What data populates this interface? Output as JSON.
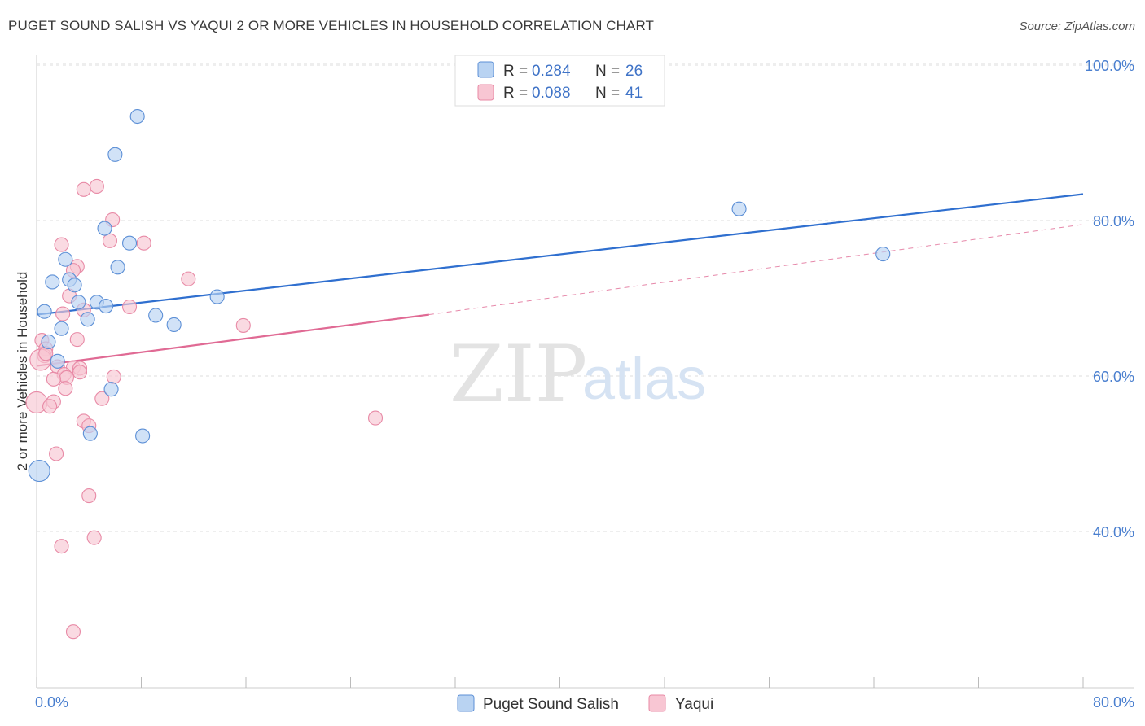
{
  "header": {
    "title": "PUGET SOUND SALISH VS YAQUI 2 OR MORE VEHICLES IN HOUSEHOLD CORRELATION CHART",
    "source": "Source: ZipAtlas.com"
  },
  "watermark": {
    "zip": "ZIP",
    "atlas": "atlas"
  },
  "colors": {
    "blue_fill": "#b9d3f2",
    "blue_stroke": "#5c8fd6",
    "blue_line": "#2f6fcf",
    "pink_fill": "#f8c6d3",
    "pink_stroke": "#e88aa6",
    "pink_line": "#e06a94",
    "grid": "#dddddd",
    "tick_text": "#4a7fcf"
  },
  "legend": {
    "entries": [
      {
        "r_label": "R =",
        "r_value": "0.284",
        "n_label": "N =",
        "n_value": "26"
      },
      {
        "r_label": "R =",
        "r_value": "0.088",
        "n_label": "N =",
        "n_value": "41"
      }
    ]
  },
  "bottom_legend": {
    "items": [
      "Puget Sound Salish",
      "Yaqui"
    ]
  },
  "chart_data": {
    "type": "scatter",
    "title": "PUGET SOUND SALISH VS YAQUI 2 OR MORE VEHICLES IN HOUSEHOLD CORRELATION CHART",
    "xlabel": "",
    "ylabel": "2 or more Vehicles in Household",
    "xlim": [
      0,
      80
    ],
    "ylim": [
      20,
      102
    ],
    "x_tick_labels": [
      "0.0%",
      "80.0%"
    ],
    "y_ticks": [
      40,
      60,
      80,
      100
    ],
    "y_tick_labels": [
      "40.0%",
      "60.0%",
      "80.0%",
      "100.0%"
    ],
    "grid": true,
    "legend_position": "top-center",
    "series": [
      {
        "name": "Puget Sound Salish",
        "r": 0.284,
        "n": 26,
        "trend": {
          "x": [
            0,
            80
          ],
          "y": [
            67.9,
            83.4
          ],
          "dashed_extension": false
        },
        "points": [
          {
            "x": 7.7,
            "y": 93.4
          },
          {
            "x": 6.0,
            "y": 88.5
          },
          {
            "x": 5.2,
            "y": 79.0
          },
          {
            "x": 7.1,
            "y": 77.1
          },
          {
            "x": 2.2,
            "y": 75.0
          },
          {
            "x": 6.2,
            "y": 74.0
          },
          {
            "x": 1.2,
            "y": 72.1
          },
          {
            "x": 2.5,
            "y": 72.4
          },
          {
            "x": 2.9,
            "y": 71.7
          },
          {
            "x": 3.2,
            "y": 69.5
          },
          {
            "x": 4.6,
            "y": 69.5
          },
          {
            "x": 5.3,
            "y": 69.0
          },
          {
            "x": 13.8,
            "y": 70.2
          },
          {
            "x": 0.6,
            "y": 68.3
          },
          {
            "x": 9.1,
            "y": 67.8
          },
          {
            "x": 3.9,
            "y": 67.3
          },
          {
            "x": 10.5,
            "y": 66.6
          },
          {
            "x": 1.9,
            "y": 66.1
          },
          {
            "x": 0.9,
            "y": 64.4
          },
          {
            "x": 1.6,
            "y": 61.9
          },
          {
            "x": 5.7,
            "y": 58.3
          },
          {
            "x": 4.1,
            "y": 52.6
          },
          {
            "x": 8.1,
            "y": 52.3
          },
          {
            "x": 0.2,
            "y": 47.8
          },
          {
            "x": 53.7,
            "y": 81.5
          },
          {
            "x": 64.7,
            "y": 75.7
          }
        ]
      },
      {
        "name": "Yaqui",
        "r": 0.088,
        "n": 41,
        "trend": {
          "x": [
            0,
            30
          ],
          "y": [
            61.3,
            67.9
          ],
          "dashed_extension": {
            "x": [
              30,
              80
            ],
            "y": [
              67.9,
              79.5
            ]
          }
        },
        "points": [
          {
            "x": 4.6,
            "y": 84.4
          },
          {
            "x": 3.6,
            "y": 84.0
          },
          {
            "x": 5.8,
            "y": 80.1
          },
          {
            "x": 5.6,
            "y": 77.4
          },
          {
            "x": 8.2,
            "y": 77.1
          },
          {
            "x": 1.9,
            "y": 76.9
          },
          {
            "x": 3.1,
            "y": 74.1
          },
          {
            "x": 2.8,
            "y": 73.6
          },
          {
            "x": 11.6,
            "y": 72.5
          },
          {
            "x": 2.5,
            "y": 70.3
          },
          {
            "x": 7.1,
            "y": 68.9
          },
          {
            "x": 3.6,
            "y": 68.5
          },
          {
            "x": 2.0,
            "y": 68.0
          },
          {
            "x": 15.8,
            "y": 66.5
          },
          {
            "x": 3.1,
            "y": 64.7
          },
          {
            "x": 0.4,
            "y": 64.6
          },
          {
            "x": 0.7,
            "y": 63.5
          },
          {
            "x": 0.6,
            "y": 62.6
          },
          {
            "x": 0.3,
            "y": 62.1
          },
          {
            "x": 1.6,
            "y": 61.2
          },
          {
            "x": 2.8,
            "y": 61.1
          },
          {
            "x": 3.3,
            "y": 61.0
          },
          {
            "x": 3.3,
            "y": 60.5
          },
          {
            "x": 2.1,
            "y": 60.2
          },
          {
            "x": 2.3,
            "y": 59.8
          },
          {
            "x": 5.9,
            "y": 59.9
          },
          {
            "x": 1.3,
            "y": 59.6
          },
          {
            "x": 2.2,
            "y": 58.4
          },
          {
            "x": 5.0,
            "y": 57.1
          },
          {
            "x": 0.0,
            "y": 56.6
          },
          {
            "x": 1.3,
            "y": 56.7
          },
          {
            "x": 1.0,
            "y": 56.1
          },
          {
            "x": 25.9,
            "y": 54.6
          },
          {
            "x": 3.6,
            "y": 54.2
          },
          {
            "x": 4.0,
            "y": 53.6
          },
          {
            "x": 1.5,
            "y": 50.0
          },
          {
            "x": 4.0,
            "y": 44.6
          },
          {
            "x": 4.4,
            "y": 39.2
          },
          {
            "x": 1.9,
            "y": 38.1
          },
          {
            "x": 2.8,
            "y": 27.1
          },
          {
            "x": 0.7,
            "y": 62.9
          }
        ]
      }
    ]
  }
}
